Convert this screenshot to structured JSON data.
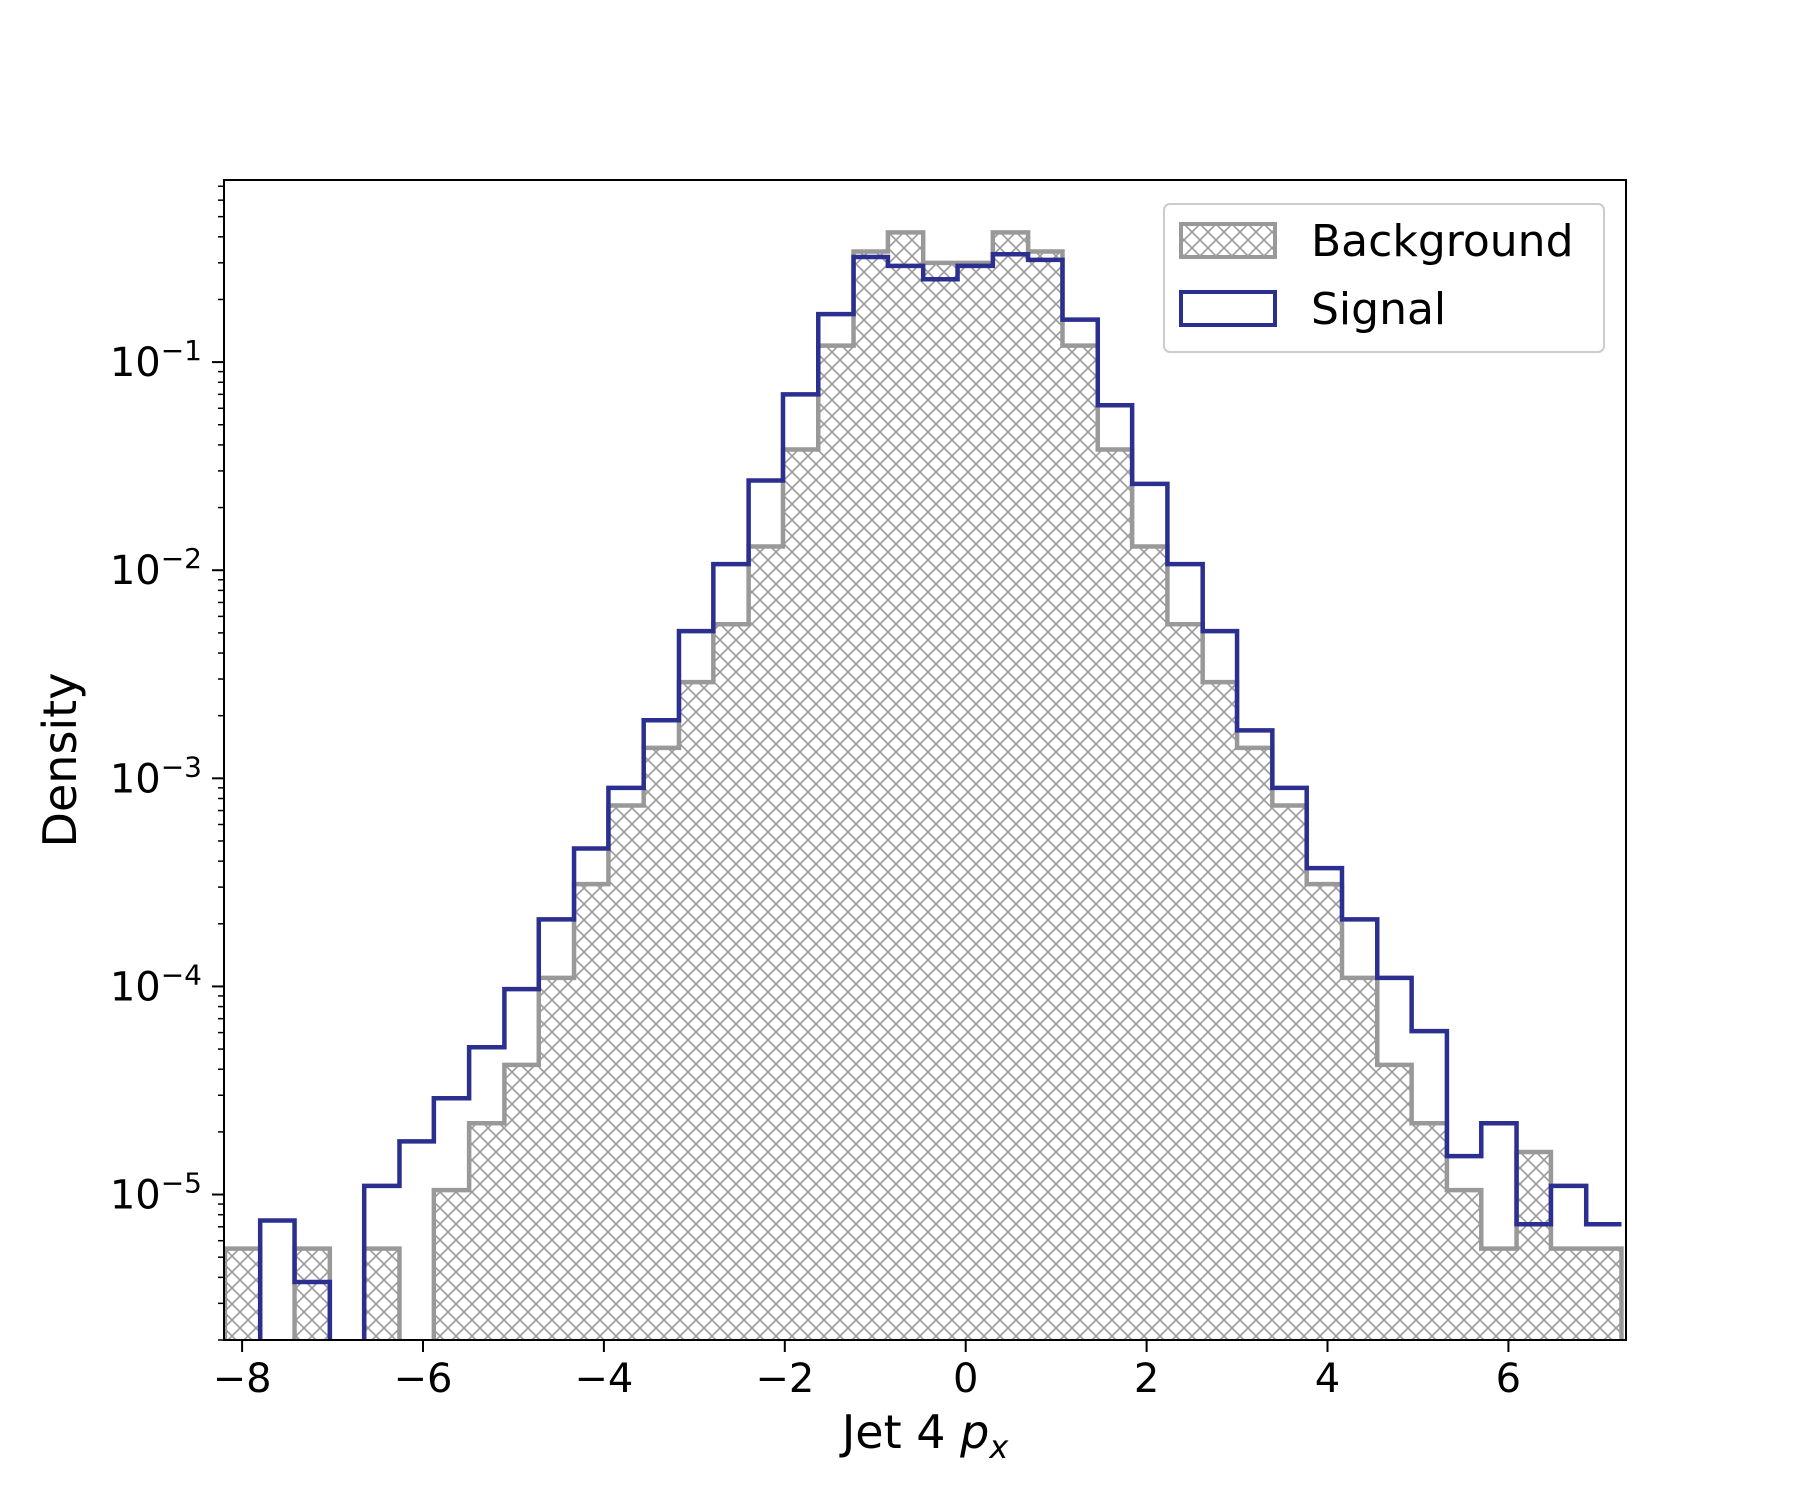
{
  "chart_data": {
    "type": "histogram",
    "xlabel": {
      "main": "Jet 4 ",
      "var": "p",
      "sub": "x"
    },
    "ylabel": "Density",
    "y_scale": "log",
    "xlim": [
      -8.2,
      7.3
    ],
    "ylim": [
      2e-06,
      0.75
    ],
    "x_ticks": [
      -8,
      -6,
      -4,
      -2,
      0,
      2,
      4,
      6
    ],
    "y_ticks": [
      1e-05,
      0.0001,
      0.001,
      0.01,
      0.1
    ],
    "y_tick_exponents": [
      "−5",
      "−4",
      "−3",
      "−2",
      "−1"
    ],
    "bin_edges": [
      -8.19,
      -7.8,
      -7.42,
      -7.03,
      -6.65,
      -6.26,
      -5.88,
      -5.49,
      -5.1,
      -4.72,
      -4.33,
      -3.95,
      -3.56,
      -3.17,
      -2.79,
      -2.4,
      -2.02,
      -1.63,
      -1.24,
      -0.86,
      -0.47,
      -0.09,
      0.3,
      0.69,
      1.07,
      1.46,
      1.84,
      2.23,
      2.62,
      3.0,
      3.39,
      3.77,
      4.16,
      4.55,
      4.93,
      5.32,
      5.7,
      6.09,
      6.47,
      6.86,
      7.25
    ],
    "series": [
      {
        "name": "Background",
        "style": "hatched-fill",
        "color": "#999999",
        "values": [
          5.5e-06,
          null,
          5.5e-06,
          null,
          5.5e-06,
          null,
          1.05e-05,
          2.2e-05,
          4.2e-05,
          0.00011,
          0.00031,
          0.00074,
          0.0014,
          0.0029,
          0.0055,
          0.013,
          0.038,
          0.12,
          0.34,
          0.42,
          0.3,
          0.3,
          0.42,
          0.34,
          0.12,
          0.038,
          0.013,
          0.0055,
          0.0029,
          0.0014,
          0.00074,
          0.00031,
          0.00011,
          4.2e-05,
          2.2e-05,
          1.05e-05,
          5.5e-06,
          1.6e-05,
          5.5e-06,
          5.5e-06
        ]
      },
      {
        "name": "Signal",
        "style": "step",
        "color": "#2b2f8f",
        "values": [
          null,
          7.5e-06,
          3.8e-06,
          null,
          1.1e-05,
          1.8e-05,
          2.9e-05,
          5.1e-05,
          9.7e-05,
          0.00021,
          0.00046,
          0.0009,
          0.0019,
          0.0051,
          0.0107,
          0.027,
          0.07,
          0.17,
          0.32,
          0.29,
          0.25,
          0.29,
          0.33,
          0.31,
          0.16,
          0.062,
          0.026,
          0.0107,
          0.0051,
          0.0017,
          0.0009,
          0.00037,
          0.00021,
          0.00011,
          6.1e-05,
          1.53e-05,
          2.2e-05,
          7.2e-06,
          1.1e-05,
          7.2e-06
        ]
      }
    ],
    "legend": {
      "position": "top-right",
      "entries": [
        "Background",
        "Signal"
      ]
    }
  }
}
